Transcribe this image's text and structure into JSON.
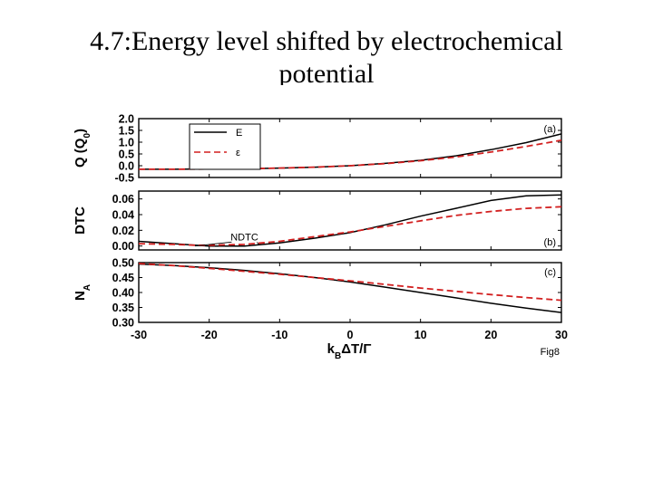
{
  "slide": {
    "title_line1": "4.7:Energy level shifted by electrochemical",
    "title_line2": "potential"
  },
  "figure": {
    "fig_label": "Fig8"
  },
  "colors": {
    "series1": "#000000",
    "series2": "#d21f1f"
  },
  "chart_data": [
    {
      "type": "line",
      "panel_label": "(a)",
      "ylabel": "Q (Q0)",
      "xlim": [
        -30,
        30
      ],
      "ylim": [
        -0.5,
        2.0
      ],
      "yticks": [
        "-0.5",
        "0.0",
        "0.5",
        "1.0",
        "1.5",
        "2.0"
      ],
      "ytick_values": [
        -0.5,
        0.0,
        0.5,
        1.0,
        1.5,
        2.0
      ],
      "legend": {
        "placement": "top-left",
        "labels": [
          "E",
          "ε"
        ]
      },
      "series": [
        {
          "name": "E",
          "color": "#000000",
          "dash": "solid",
          "x": [
            -30,
            -25,
            -20,
            -15,
            -10,
            -5,
            0,
            5,
            10,
            15,
            20,
            25,
            30
          ],
          "y": [
            -0.15,
            -0.15,
            -0.14,
            -0.13,
            -0.1,
            -0.06,
            0.0,
            0.1,
            0.23,
            0.42,
            0.68,
            0.98,
            1.35
          ]
        },
        {
          "name": "ε",
          "color": "#d21f1f",
          "dash": "dashed",
          "x": [
            -30,
            -25,
            -20,
            -15,
            -10,
            -5,
            0,
            5,
            10,
            15,
            20,
            25,
            30
          ],
          "y": [
            -0.15,
            -0.15,
            -0.14,
            -0.13,
            -0.1,
            -0.06,
            0.0,
            0.09,
            0.21,
            0.37,
            0.58,
            0.82,
            1.08
          ]
        }
      ]
    },
    {
      "type": "line",
      "panel_label": "(b)",
      "ylabel": "DTC",
      "xlim": [
        -30,
        30
      ],
      "ylim": [
        -0.005,
        0.07
      ],
      "yticks": [
        "0.00",
        "0.02",
        "0.04",
        "0.06"
      ],
      "ytick_values": [
        0.0,
        0.02,
        0.04,
        0.06
      ],
      "annotation": {
        "text": "NDTC",
        "x": -15,
        "y": 0.012,
        "targets": [
          [
            -22,
            0.0
          ],
          [
            -13,
            0.002
          ]
        ]
      },
      "series": [
        {
          "color": "#000000",
          "dash": "solid",
          "x": [
            -30,
            -25,
            -22,
            -20,
            -15,
            -10,
            -5,
            0,
            5,
            10,
            15,
            20,
            25,
            30
          ],
          "y": [
            0.006,
            0.003,
            0.001,
            0.0,
            0.0,
            0.004,
            0.01,
            0.017,
            0.027,
            0.038,
            0.048,
            0.058,
            0.064,
            0.065
          ]
        },
        {
          "color": "#d21f1f",
          "dash": "dashed",
          "x": [
            -30,
            -25,
            -22,
            -20,
            -15,
            -10,
            -5,
            0,
            5,
            10,
            15,
            20,
            25,
            30
          ],
          "y": [
            0.003,
            0.002,
            0.001,
            0.001,
            0.002,
            0.006,
            0.012,
            0.018,
            0.025,
            0.032,
            0.039,
            0.044,
            0.048,
            0.05
          ]
        }
      ]
    },
    {
      "type": "line",
      "panel_label": "(c)",
      "ylabel": "NA",
      "xlabel": "kBΔT/Γ",
      "xlim": [
        -30,
        30
      ],
      "ylim": [
        0.3,
        0.5
      ],
      "xticks": [
        "-30",
        "-20",
        "-10",
        "0",
        "10",
        "20",
        "30"
      ],
      "xtick_values": [
        -30,
        -20,
        -10,
        0,
        10,
        20,
        30
      ],
      "yticks": [
        "0.30",
        "0.35",
        "0.40",
        "0.45",
        "0.50"
      ],
      "ytick_values": [
        0.3,
        0.35,
        0.4,
        0.45,
        0.5
      ],
      "series": [
        {
          "color": "#000000",
          "dash": "solid",
          "x": [
            -30,
            -25,
            -20,
            -15,
            -10,
            -5,
            0,
            5,
            10,
            15,
            20,
            25,
            30
          ],
          "y": [
            0.495,
            0.49,
            0.483,
            0.474,
            0.463,
            0.45,
            0.435,
            0.418,
            0.4,
            0.382,
            0.364,
            0.348,
            0.333
          ]
        },
        {
          "color": "#d21f1f",
          "dash": "dashed",
          "x": [
            -30,
            -25,
            -20,
            -15,
            -10,
            -5,
            0,
            5,
            10,
            15,
            20,
            25,
            30
          ],
          "y": [
            0.497,
            0.49,
            0.481,
            0.471,
            0.461,
            0.45,
            0.439,
            0.427,
            0.415,
            0.404,
            0.393,
            0.383,
            0.374
          ]
        }
      ]
    }
  ]
}
